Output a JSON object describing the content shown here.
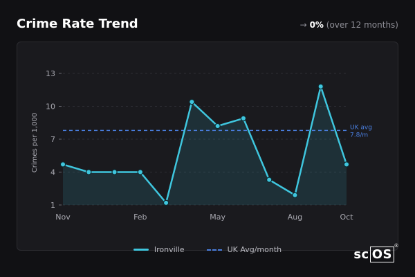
{
  "header": {
    "title": "Crime Rate Trend",
    "trend_arrow": "→",
    "trend_value": "0%",
    "trend_period": "(over 12 months)"
  },
  "logo": {
    "text_a": "sc",
    "text_b": "OS",
    "reg": "®"
  },
  "chart_data": {
    "type": "line",
    "ylabel": "Crimes per 1,000",
    "xlabel": "",
    "ylim": [
      1,
      13
    ],
    "yticks": [
      1,
      4,
      7,
      10,
      13
    ],
    "x_tick_labels": [
      {
        "index": 0,
        "label": "Nov"
      },
      {
        "index": 3,
        "label": "Feb"
      },
      {
        "index": 6,
        "label": "May"
      },
      {
        "index": 9,
        "label": "Aug"
      },
      {
        "index": 11,
        "label": "Oct"
      }
    ],
    "series": [
      {
        "name": "Ironville",
        "color": "#3fc6de",
        "values": [
          4.7,
          4.0,
          4.0,
          4.0,
          1.2,
          10.4,
          8.2,
          8.9,
          3.3,
          1.9,
          11.8,
          4.7
        ]
      }
    ],
    "reference_line": {
      "name": "UK Avg/month",
      "value": 7.8,
      "label_line1": "UK avg",
      "label_line2": "7.8/m",
      "color": "#4a7fe0"
    },
    "grid": true,
    "legend_position": "bottom-center"
  }
}
